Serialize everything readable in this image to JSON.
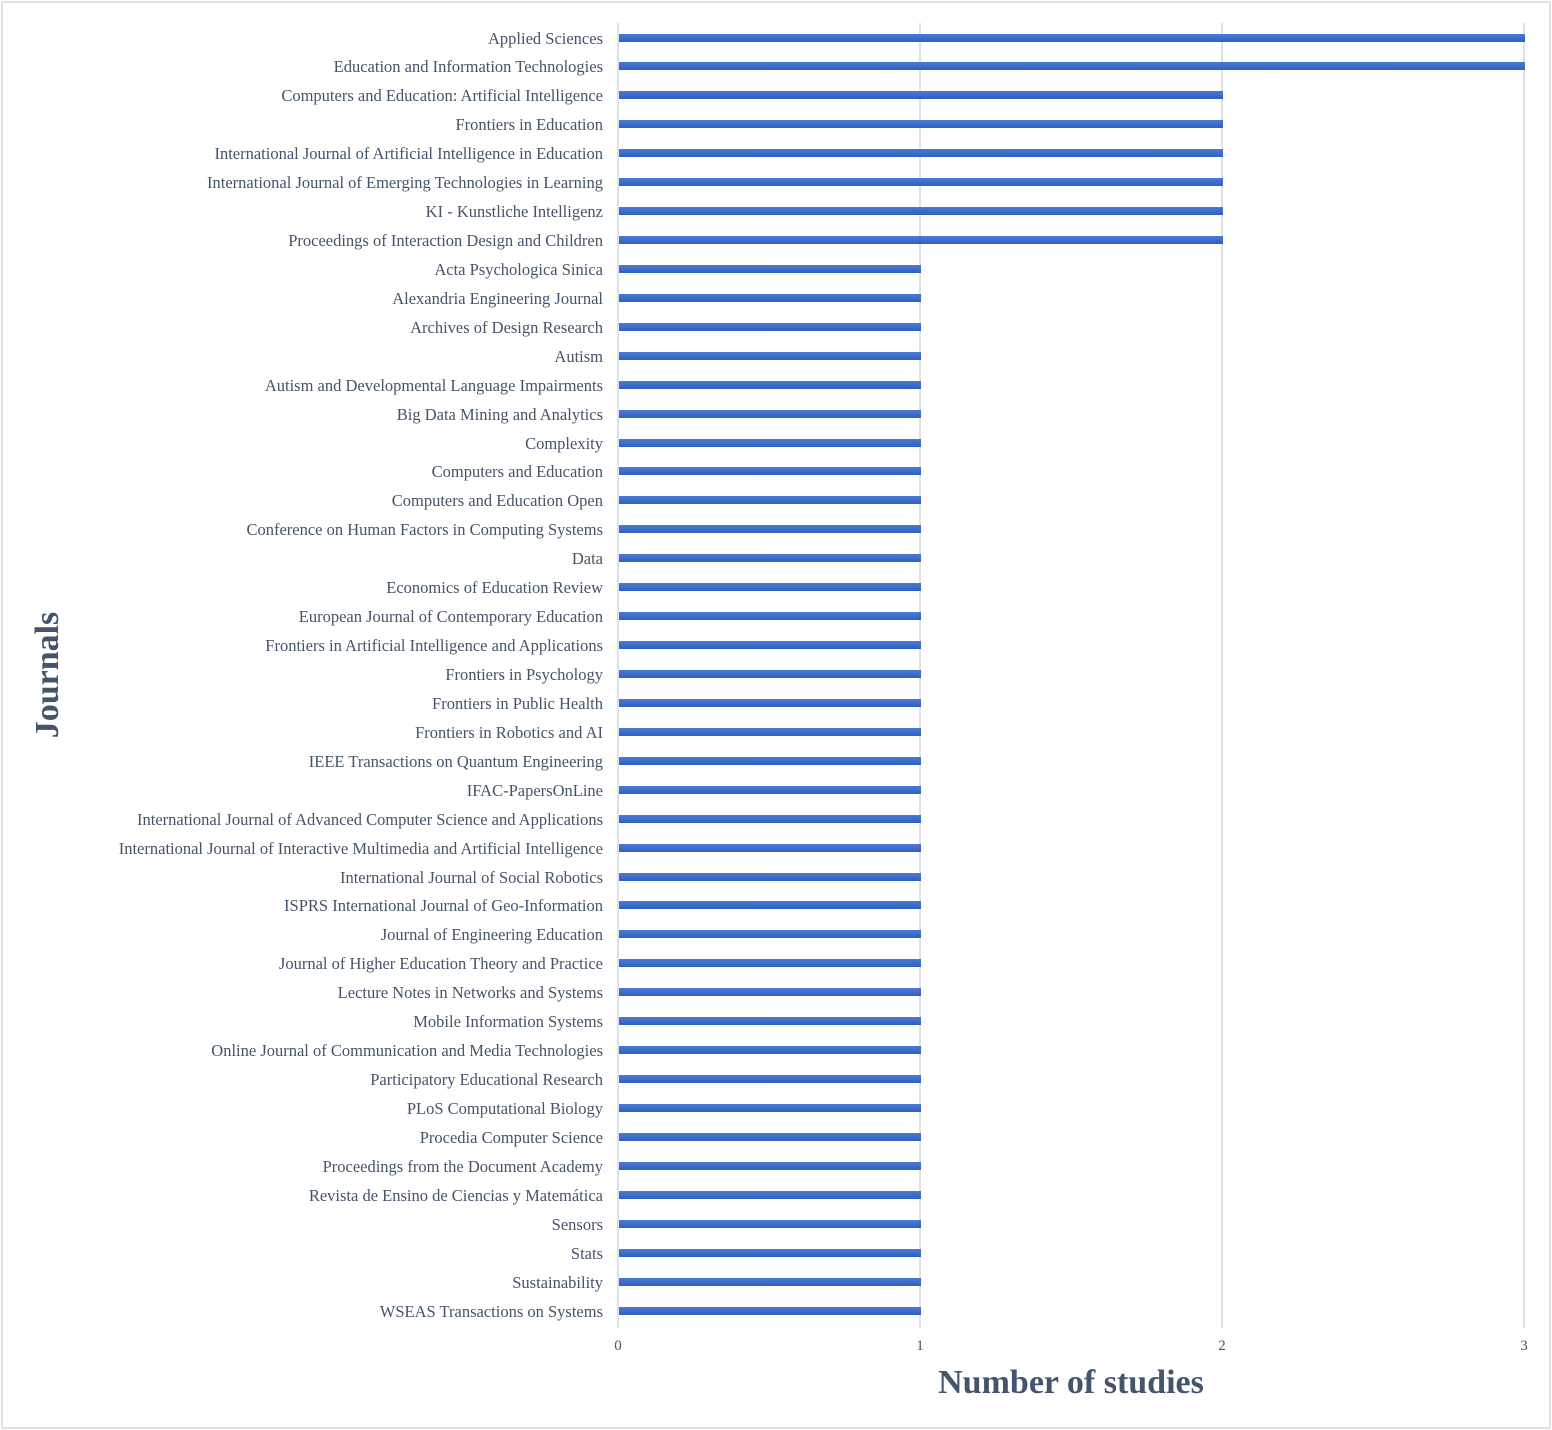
{
  "chart_data": {
    "type": "bar",
    "orientation": "horizontal",
    "title": "",
    "xlabel": "Number of studies",
    "ylabel": "Journals",
    "xlim": [
      0,
      3
    ],
    "x_ticks": [
      "0",
      "1",
      "2",
      "3"
    ],
    "grid": "vertical",
    "legend": "none",
    "bar_color": "#3a6bcb",
    "categories": [
      "Applied Sciences",
      "Education and Information Technologies",
      "Computers and Education: Artificial Intelligence",
      "Frontiers in Education",
      "International Journal of Artificial Intelligence in Education",
      "International Journal of Emerging Technologies in Learning",
      "KI - Kunstliche Intelligenz",
      "Proceedings of Interaction Design and Children",
      "Acta Psychologica Sinica",
      "Alexandria Engineering Journal",
      "Archives of Design Research",
      "Autism",
      "Autism and Developmental Language Impairments",
      "Big Data Mining and Analytics",
      "Complexity",
      "Computers and Education",
      "Computers and Education Open",
      "Conference on Human Factors in Computing Systems",
      "Data",
      "Economics of Education Review",
      "European Journal of Contemporary Education",
      "Frontiers in Artificial Intelligence and Applications",
      "Frontiers in Psychology",
      "Frontiers in Public Health",
      "Frontiers in Robotics and AI",
      "IEEE Transactions on Quantum Engineering",
      "IFAC-PapersOnLine",
      "International Journal of Advanced Computer Science and Applications",
      "International Journal of Interactive Multimedia and Artificial Intelligence",
      "International Journal of Social Robotics",
      "ISPRS International Journal of Geo-Information",
      "Journal of Engineering Education",
      "Journal of Higher Education Theory and Practice",
      "Lecture Notes in Networks and Systems",
      "Mobile Information Systems",
      "Online Journal of Communication and Media Technologies",
      "Participatory Educational Research",
      "PLoS Computational Biology",
      "Procedia Computer Science",
      "Proceedings from the Document Academy",
      "Revista de Ensino de Ciencias y Matemática",
      "Sensors",
      "Stats",
      "Sustainability",
      "WSEAS Transactions on Systems"
    ],
    "values": [
      3,
      3,
      2,
      2,
      2,
      2,
      2,
      2,
      1,
      1,
      1,
      1,
      1,
      1,
      1,
      1,
      1,
      1,
      1,
      1,
      1,
      1,
      1,
      1,
      1,
      1,
      1,
      1,
      1,
      1,
      1,
      1,
      1,
      1,
      1,
      1,
      1,
      1,
      1,
      1,
      1,
      1,
      1,
      1,
      1
    ]
  }
}
